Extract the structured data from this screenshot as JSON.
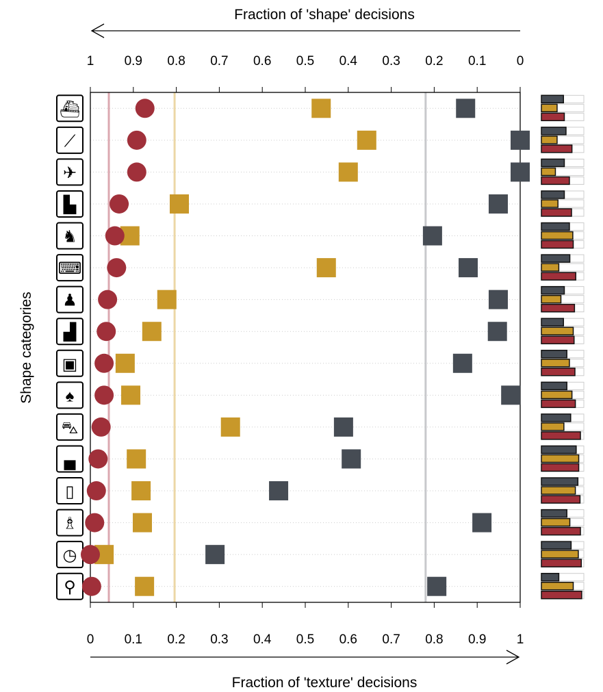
{
  "chart_data": {
    "type": "scatter",
    "top_axis_title": "Fraction of 'shape' decisions",
    "bottom_axis_title": "Fraction of 'texture' decisions",
    "ylabel": "Shape categories",
    "xlim": [
      0,
      1
    ],
    "bottom_ticks": [
      "0",
      "0.1",
      "0.2",
      "0.3",
      "0.4",
      "0.5",
      "0.6",
      "0.7",
      "0.8",
      "0.9",
      "1"
    ],
    "top_ticks": [
      "1",
      "0.9",
      "0.8",
      "0.7",
      "0.6",
      "0.5",
      "0.4",
      "0.3",
      "0.2",
      "0.1",
      "0"
    ],
    "categories": [
      "boat",
      "knife",
      "airplane",
      "bear",
      "dog",
      "keyboard",
      "cat",
      "elephant",
      "oven",
      "bird",
      "car",
      "truck",
      "bottle",
      "chair",
      "clock",
      "bicycle"
    ],
    "series": [
      {
        "name": "red-circles",
        "marker": "circle",
        "color": "#a0303a",
        "values": [
          0.127,
          0.108,
          0.108,
          0.067,
          0.057,
          0.061,
          0.04,
          0.037,
          0.032,
          0.032,
          0.025,
          0.018,
          0.014,
          0.01,
          0.0,
          0.003
        ],
        "mean": 0.043
      },
      {
        "name": "orange-squares",
        "marker": "square",
        "color": "#c8982a",
        "values": [
          0.537,
          0.643,
          0.6,
          0.207,
          0.092,
          0.549,
          0.178,
          0.143,
          0.081,
          0.094,
          0.326,
          0.107,
          0.118,
          0.121,
          0.032,
          0.126
        ],
        "mean": 0.196
      },
      {
        "name": "gray-squares",
        "marker": "square",
        "color": "#464c54",
        "values": [
          0.873,
          1.0,
          1.0,
          0.949,
          0.796,
          0.879,
          0.949,
          0.947,
          0.866,
          0.978,
          0.589,
          0.607,
          0.438,
          0.911,
          0.29,
          0.806
        ],
        "mean": 0.78
      }
    ],
    "side_bars": {
      "gray": [
        0.52,
        0.58,
        0.54,
        0.54,
        0.66,
        0.67,
        0.54,
        0.52,
        0.6,
        0.6,
        0.69,
        0.82,
        0.86,
        0.6,
        0.7,
        0.41
      ],
      "orange": [
        0.37,
        0.37,
        0.33,
        0.39,
        0.74,
        0.41,
        0.46,
        0.75,
        0.66,
        0.72,
        0.53,
        0.88,
        0.8,
        0.67,
        0.87,
        0.75
      ],
      "red": [
        0.54,
        0.72,
        0.66,
        0.71,
        0.75,
        0.81,
        0.78,
        0.77,
        0.79,
        0.8,
        0.92,
        0.88,
        0.91,
        0.92,
        0.94,
        0.95
      ]
    }
  }
}
